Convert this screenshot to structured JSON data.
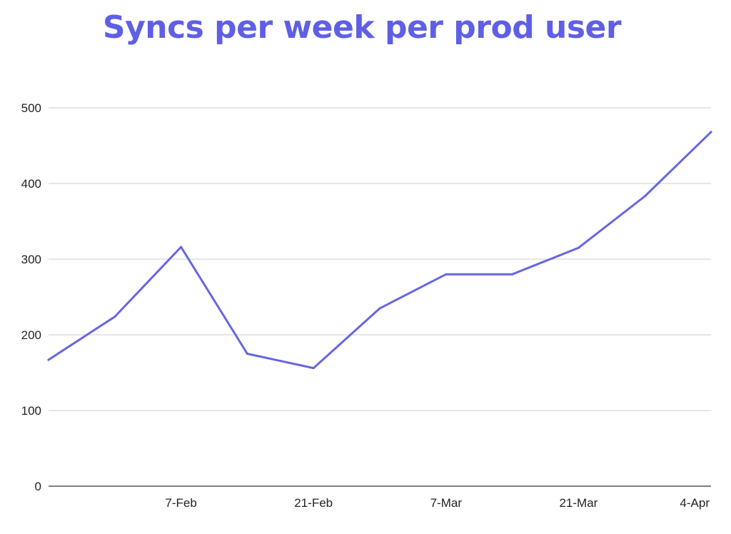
{
  "chart_data": {
    "type": "line",
    "title": "Syncs per week per prod user",
    "xlabel": "",
    "ylabel": "",
    "x": [
      "2022-01-24",
      "2022-01-31",
      "2022-02-07",
      "2022-02-14",
      "2022-02-21",
      "2022-02-28",
      "2022-03-07",
      "2022-03-14",
      "2022-03-21",
      "2022-03-28",
      "2022-04-04"
    ],
    "x_tick_labels": [
      {
        "date": "2022-02-07",
        "label": "7-Feb"
      },
      {
        "date": "2022-02-21",
        "label": "21-Feb"
      },
      {
        "date": "2022-03-07",
        "label": "7-Mar"
      },
      {
        "date": "2022-03-21",
        "label": "21-Mar"
      },
      {
        "date": "2022-04-04",
        "label": "4-Apr"
      }
    ],
    "series": [
      {
        "values": [
          167,
          224,
          316,
          175,
          156,
          235,
          280,
          280,
          315,
          383,
          468
        ]
      }
    ],
    "yticks": [
      "0",
      "100",
      "200",
      "300",
      "400",
      "500"
    ],
    "ylim": [
      0,
      500
    ],
    "grid": true,
    "legend": "none",
    "colors": {
      "title": "#5f5fe6",
      "line": "#6666e4",
      "grid": "#cccccc",
      "axis": "#333333"
    }
  }
}
